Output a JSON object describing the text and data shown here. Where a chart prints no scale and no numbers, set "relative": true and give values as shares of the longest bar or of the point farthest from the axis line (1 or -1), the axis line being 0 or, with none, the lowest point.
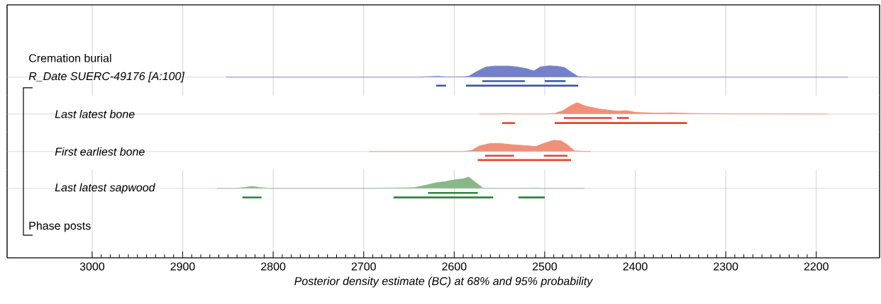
{
  "chart_data": [
    {
      "type": "area",
      "title": "R_Date SUERC-49176 [A:100]",
      "annotations": [
        "Cremation burial"
      ],
      "relative": true,
      "xlim": [
        3094,
        2130
      ],
      "xticks": [
        3000,
        2900,
        2800,
        2700,
        2600,
        2500,
        2400,
        2300,
        2200
      ],
      "grid": "x",
      "tick_labels": false,
      "series": [
        {
          "color": "#7480c8",
          "x": [
            2852,
            2640,
            2625,
            2618,
            2610,
            2600,
            2590,
            2584,
            2575,
            2565,
            2555,
            2540,
            2530,
            2520,
            2512,
            2505,
            2495,
            2485,
            2478,
            2470,
            2463,
            2450,
            2165
          ],
          "values": [
            0,
            0,
            0.05,
            0.07,
            0.03,
            0.02,
            0.03,
            0.08,
            0.5,
            0.9,
            0.98,
            0.98,
            0.9,
            0.75,
            0.55,
            0.9,
            1,
            0.95,
            0.85,
            0.4,
            0.05,
            0,
            0
          ]
        },
        {
          "type": "line",
          "color": "#3f56b0",
          "x": [
            2569,
            2522
          ],
          "values": [
            -0.35,
            -0.35
          ]
        },
        {
          "type": "line",
          "color": "#3f56b0",
          "x": [
            2500,
            2477
          ],
          "values": [
            -0.35,
            -0.35
          ]
        },
        {
          "type": "line",
          "color": "#3f56b0",
          "x": [
            2620,
            2609
          ],
          "values": [
            -0.75,
            -0.75
          ]
        },
        {
          "type": "line",
          "color": "#3f56b0",
          "x": [
            2587,
            2463
          ],
          "values": [
            -0.75,
            -0.75
          ]
        }
      ]
    },
    {
      "type": "area",
      "title": "Last latest bone",
      "relative": true,
      "xlim": [
        3094,
        2130
      ],
      "xticks": [
        3000,
        2900,
        2800,
        2700,
        2600,
        2500,
        2400,
        2300,
        2200
      ],
      "grid": "x",
      "tick_labels": false,
      "series": [
        {
          "color": "#f0907a",
          "x": [
            2572,
            2550,
            2542,
            2535,
            2500,
            2489,
            2480,
            2470,
            2464,
            2455,
            2440,
            2425,
            2418,
            2410,
            2400,
            2380,
            2360,
            2340,
            2320,
            2300,
            2187
          ],
          "values": [
            0,
            0,
            0.03,
            0,
            0,
            0.05,
            0.3,
            0.8,
            1,
            0.7,
            0.45,
            0.3,
            0.25,
            0.3,
            0.15,
            0.08,
            0.1,
            0.05,
            0.03,
            0.01,
            0
          ]
        },
        {
          "type": "line",
          "color": "#e0452e",
          "x": [
            2479,
            2426
          ],
          "values": [
            -0.35,
            -0.35
          ]
        },
        {
          "type": "line",
          "color": "#e0452e",
          "x": [
            2420,
            2407
          ],
          "values": [
            -0.35,
            -0.35
          ]
        },
        {
          "type": "line",
          "color": "#e0452e",
          "x": [
            2547,
            2533
          ],
          "values": [
            -0.8,
            -0.8
          ]
        },
        {
          "type": "line",
          "color": "#e0452e",
          "x": [
            2489,
            2343
          ],
          "values": [
            -0.8,
            -0.8
          ]
        }
      ]
    },
    {
      "type": "area",
      "title": "First earliest bone",
      "relative": true,
      "xlim": [
        3094,
        2130
      ],
      "xticks": [
        3000,
        2900,
        2800,
        2700,
        2600,
        2500,
        2400,
        2300,
        2200
      ],
      "grid": "x",
      "tick_labels": false,
      "series": [
        {
          "color": "#f0907a",
          "x": [
            2694,
            2590,
            2581,
            2572,
            2560,
            2550,
            2535,
            2520,
            2510,
            2500,
            2490,
            2482,
            2475,
            2467,
            2449
          ],
          "values": [
            0,
            0,
            0.1,
            0.5,
            0.72,
            0.72,
            0.6,
            0.52,
            0.45,
            0.75,
            1,
            0.95,
            0.6,
            0.05,
            0
          ]
        },
        {
          "type": "line",
          "color": "#e0452e",
          "x": [
            2566,
            2534
          ],
          "values": [
            -0.37,
            -0.37
          ]
        },
        {
          "type": "line",
          "color": "#e0452e",
          "x": [
            2501,
            2475
          ],
          "values": [
            -0.37,
            -0.37
          ]
        },
        {
          "type": "line",
          "color": "#e0452e",
          "x": [
            2574,
            2471
          ],
          "values": [
            -0.75,
            -0.75
          ]
        }
      ]
    },
    {
      "type": "area",
      "title": "Last latest sapwood",
      "xlabel": "Posterior density estimate (BC) at 68% and 95% probability",
      "annotations": [
        "Phase posts"
      ],
      "relative": true,
      "xlim": [
        3094,
        2130
      ],
      "xticks": [
        3000,
        2900,
        2800,
        2700,
        2600,
        2500,
        2400,
        2300,
        2200
      ],
      "grid": "x",
      "tick_labels": "x",
      "series": [
        {
          "color": "#88b888",
          "x": [
            2862,
            2840,
            2830,
            2823,
            2815,
            2805,
            2700,
            2670,
            2645,
            2630,
            2620,
            2610,
            2600,
            2590,
            2584,
            2576,
            2568,
            2560,
            2520,
            2512,
            2504,
            2456
          ],
          "values": [
            0,
            0,
            0.1,
            0.18,
            0.08,
            0,
            0,
            0.03,
            0.06,
            0.3,
            0.5,
            0.6,
            0.75,
            0.85,
            1,
            0.5,
            0.02,
            0,
            0,
            0.03,
            0,
            0
          ]
        },
        {
          "type": "line",
          "color": "#2e8540",
          "x": [
            2629,
            2574
          ],
          "values": [
            -0.4,
            -0.4
          ]
        },
        {
          "type": "line",
          "color": "#2e8540",
          "x": [
            2834,
            2813
          ],
          "values": [
            -0.8,
            -0.8
          ]
        },
        {
          "type": "line",
          "color": "#2e8540",
          "x": [
            2667,
            2557
          ],
          "values": [
            -0.8,
            -0.8
          ]
        },
        {
          "type": "line",
          "color": "#2e8540",
          "x": [
            2529,
            2500
          ],
          "values": [
            -0.8,
            -0.8
          ]
        }
      ]
    }
  ]
}
